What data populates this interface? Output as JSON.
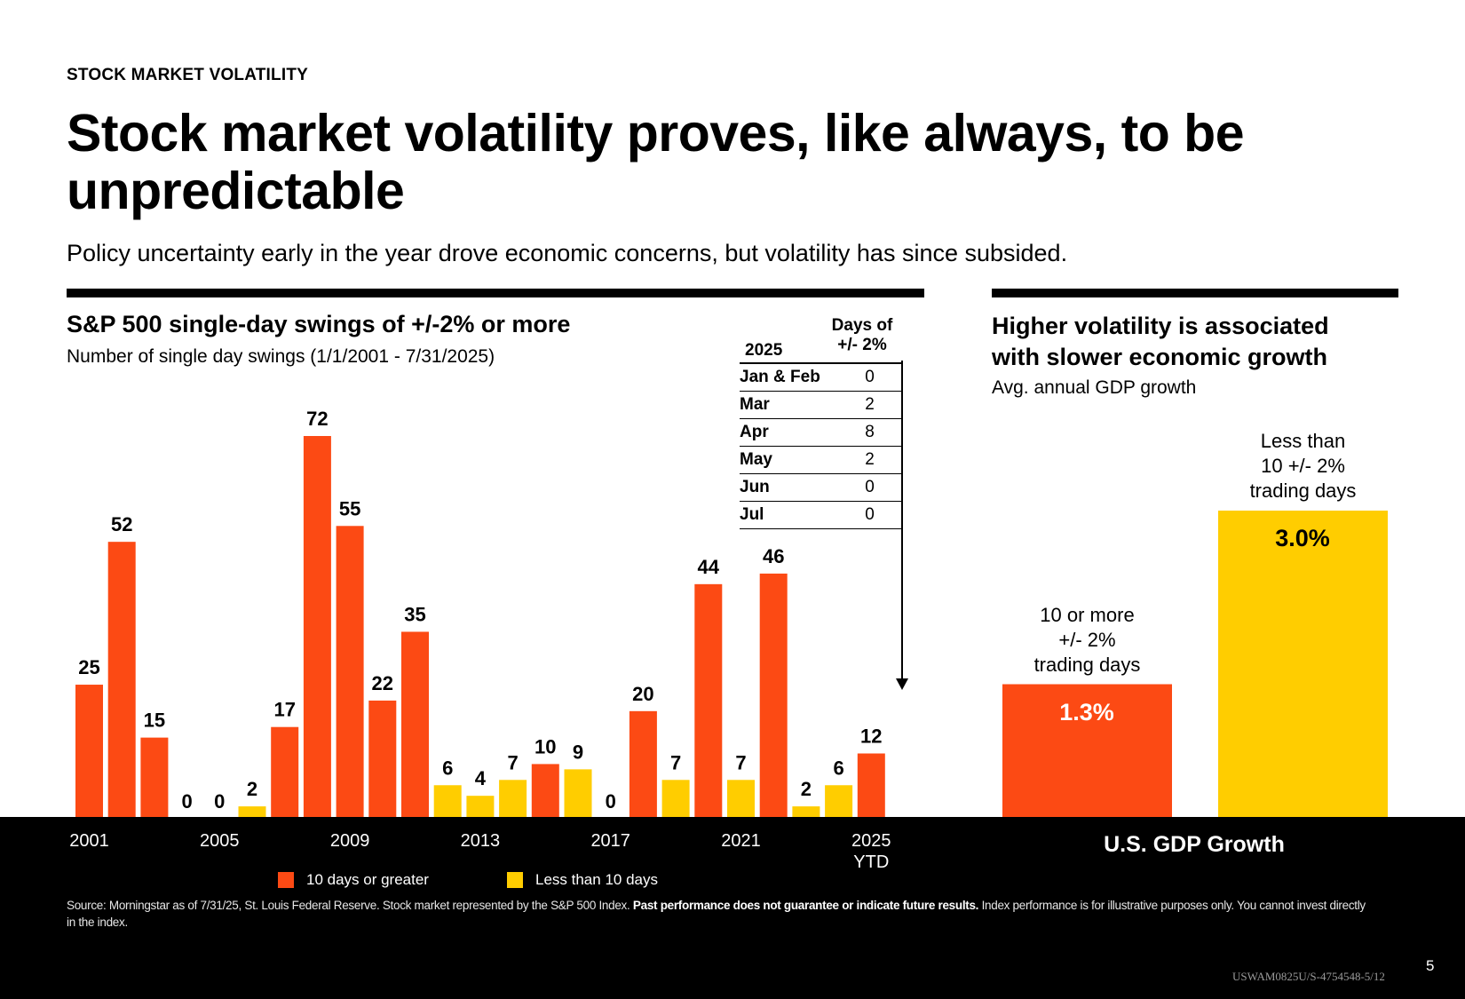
{
  "header": {
    "eyebrow": "STOCK MARKET VOLATILITY",
    "title": "Stock market volatility proves, like always, to be unpredictable",
    "subtitle": "Policy uncertainty early in the year drove economic concerns, but volatility has since subsided."
  },
  "left_panel": {
    "title": "S&P 500 single-day swings of +/-2% or more",
    "subtitle": "Number of single day swings (1/1/2001 - 7/31/2025)"
  },
  "table": {
    "header_year": "2025",
    "header_days_line1": "Days of",
    "header_days_line2": "+/- 2%",
    "rows": [
      {
        "month": "Jan & Feb",
        "days": "0"
      },
      {
        "month": "Mar",
        "days": "2"
      },
      {
        "month": "Apr",
        "days": "8"
      },
      {
        "month": "May",
        "days": "2"
      },
      {
        "month": "Jun",
        "days": "0"
      },
      {
        "month": "Jul",
        "days": "0"
      }
    ]
  },
  "right_panel": {
    "title_line1": "Higher volatility is associated",
    "title_line2": "with slower economic growth",
    "subtitle": "Avg. annual GDP growth",
    "axis_label": "U.S. GDP Growth"
  },
  "legend": {
    "high_label": "10 days or greater",
    "low_label": "Less than 10 days"
  },
  "colors": {
    "high": "#FC4A14",
    "low": "#FFCD00"
  },
  "footer": {
    "source_plain": "Source: Morningstar as of 7/31/25, St. Louis Federal Reserve. Stock market represented by the S&P 500 Index. ",
    "source_bold": "Past performance does not guarantee or indicate future results.",
    "source_tail": " Index performance is for illustrative purposes only. You cannot invest directly in the index.",
    "code": "USWAM0825U/S-4754548-5/12",
    "page_number": "5"
  },
  "chart_data": [
    {
      "type": "bar",
      "title": "S&P 500 single-day swings of +/-2% or more",
      "subtitle": "Number of single day swings (1/1/2001 - 7/31/2025)",
      "xlabel": "",
      "ylabel": "",
      "ylim": [
        0,
        72
      ],
      "categories": [
        "2001",
        "2002",
        "2003",
        "2004",
        "2005",
        "2006",
        "2007",
        "2008",
        "2009",
        "2010",
        "2011",
        "2012",
        "2013",
        "2014",
        "2015",
        "2016",
        "2017",
        "2018",
        "2019",
        "2020",
        "2021",
        "2022",
        "2023",
        "2024",
        "2025"
      ],
      "values": [
        25,
        52,
        15,
        0,
        0,
        2,
        17,
        72,
        55,
        22,
        35,
        6,
        4,
        7,
        10,
        9,
        0,
        20,
        7,
        44,
        7,
        46,
        2,
        6,
        12
      ],
      "tick_labels": [
        {
          "category": "2001",
          "text": "2001"
        },
        {
          "category": "2005",
          "text": "2005"
        },
        {
          "category": "2009",
          "text": "2009"
        },
        {
          "category": "2013",
          "text": "2013"
        },
        {
          "category": "2017",
          "text": "2017"
        },
        {
          "category": "2021",
          "text": "2021"
        },
        {
          "category": "2025",
          "text": "2025",
          "text2": "YTD"
        }
      ],
      "color_rule": "value >= 10 -> '10 days or greater' (orange); value < 10 -> 'Less than 10 days' (yellow)",
      "legend": [
        "10 days or greater",
        "Less than 10 days"
      ],
      "legend_position": "bottom",
      "grid": false
    },
    {
      "type": "bar",
      "title": "Higher volatility is associated with slower economic growth",
      "subtitle": "Avg. annual GDP growth",
      "xlabel": "U.S. GDP Growth",
      "ylabel": "",
      "ylim": [
        0,
        3.0
      ],
      "categories": [
        "10 or more +/- 2% trading days",
        "Less than 10 +/- 2% trading days"
      ],
      "category_lines": [
        [
          "10 or more",
          "+/- 2%",
          "trading days"
        ],
        [
          "Less than",
          "10 +/- 2%",
          "trading days"
        ]
      ],
      "values": [
        1.3,
        3.0
      ],
      "value_labels": [
        "1.3%",
        "3.0%"
      ],
      "grid": false
    }
  ]
}
